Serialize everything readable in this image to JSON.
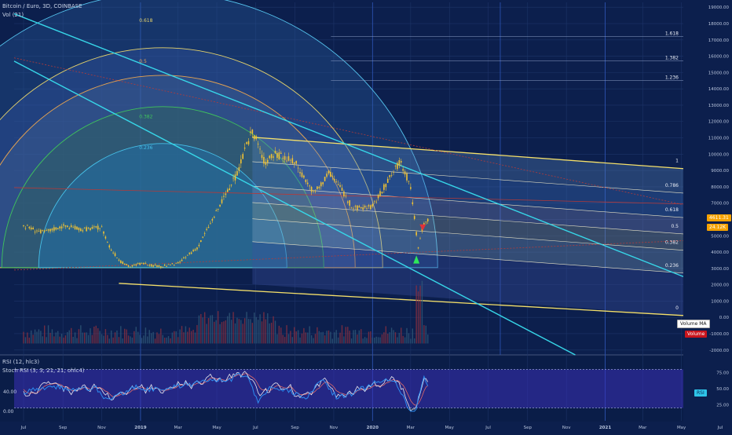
{
  "header": {
    "symbol_line": "Bitcoin / Euro, 3D, COINBASE",
    "volume_indicator": "Vol (21)"
  },
  "oscillators": {
    "rsi_label": "RSI (12, hlc3)",
    "stoch_label": "Stoch RSI (3, 3, 21, 21, ohlc4)",
    "rsi_tag": "RSI",
    "left_value_top": "40.00",
    "left_value_bottom": "0.00"
  },
  "volume_badges": {
    "ma_label": "Volume MA",
    "volume_label": "Volume"
  },
  "price_badges": {
    "last_price": "4611.31",
    "volume_value": "24.12K"
  },
  "colors": {
    "background": "#0c1f4d",
    "fib_fan_channel": "#f5e06a",
    "trend_line": "#37d6e8",
    "rsi_line": "#2d8cf0",
    "stoch_k": "#e8e8f0",
    "stoch_d": "#e06a6a",
    "candle_body": "#f1c232",
    "rsi_band_fill": "#3a2fb8"
  },
  "chart_data": {
    "type": "line",
    "series": [
      {
        "name": "Bitcoin / Euro",
        "x": [
          "2018-07-01",
          "2018-08-01",
          "2018-09-01",
          "2018-10-01",
          "2018-11-01",
          "2018-11-15",
          "2018-12-01",
          "2018-12-15",
          "2019-01-01",
          "2019-02-01",
          "2019-03-01",
          "2019-04-01",
          "2019-05-01",
          "2019-06-01",
          "2019-06-26",
          "2019-07-15",
          "2019-08-01",
          "2019-09-01",
          "2019-10-01",
          "2019-10-26",
          "2019-11-15",
          "2019-12-01",
          "2020-01-01",
          "2020-02-01",
          "2020-02-14",
          "2020-03-01",
          "2020-03-13",
          "2020-03-20",
          "2020-03-28"
        ],
        "values": [
          5600,
          5200,
          5600,
          5400,
          5500,
          4200,
          3400,
          3100,
          3300,
          3100,
          3300,
          4300,
          6500,
          8700,
          11500,
          9500,
          10000,
          9500,
          7600,
          8900,
          7700,
          6700,
          6800,
          8800,
          9600,
          8000,
          4200,
          5600,
          6000
        ]
      }
    ],
    "y_axis": {
      "ticks": [
        19000,
        18000,
        17000,
        16000,
        15000,
        14000,
        13000,
        12000,
        11000,
        10000,
        9000,
        8000,
        7000,
        6000,
        5000,
        4000,
        3000,
        2000,
        1000,
        0,
        -1000,
        -2000
      ],
      "tick_labels": [
        "19000.00",
        "18000.00",
        "17000.00",
        "16000.00",
        "15000.00",
        "14000.00",
        "13000.00",
        "12000.00",
        "11000.00",
        "10000.00",
        "9000.00",
        "8000.00",
        "7000.00",
        "6000.00",
        "5000.00",
        "4000.00",
        "3000.00",
        "2000.00",
        "1000.00",
        "0.00",
        "-1000.00",
        "-2000.00"
      ],
      "ylim": [
        -2300,
        19300
      ]
    },
    "x_axis": {
      "tick_labels": [
        "Jul",
        "Sep",
        "Nov",
        "2019",
        "Mar",
        "May",
        "Jul",
        "Sep",
        "Nov",
        "2020",
        "Mar",
        "May",
        "Jul",
        "Sep",
        "Nov",
        "2021",
        "Mar",
        "May",
        "Jul"
      ],
      "tick_dates": [
        "2018-07-01",
        "2018-09-01",
        "2018-11-01",
        "2019-01-01",
        "2019-03-01",
        "2019-05-01",
        "2019-07-01",
        "2019-09-01",
        "2019-11-01",
        "2020-01-01",
        "2020-03-01",
        "2020-05-01",
        "2020-07-01",
        "2020-09-01",
        "2020-11-01",
        "2021-01-01",
        "2021-03-01",
        "2021-05-01",
        "2021-07-01"
      ]
    },
    "fib_channel_levels": [
      {
        "label": "1.618",
        "value": 17700
      },
      {
        "label": "1.382",
        "value": 16200
      },
      {
        "label": "1.236",
        "value": 15000
      },
      {
        "label": "1",
        "value": 12000
      },
      {
        "label": "0.786",
        "value": 10500
      },
      {
        "label": "0.618",
        "value": 9000
      },
      {
        "label": "0.5",
        "value": 8000
      },
      {
        "label": "0.382",
        "value": 7000
      },
      {
        "label": "0.236",
        "value": 5600
      },
      {
        "label": "0",
        "value": 3000
      }
    ],
    "fib_fan_labels": [
      "0.618",
      "0.5",
      "0.382",
      "0.236"
    ],
    "rsi_axis": {
      "ticks": [
        75,
        50,
        25
      ],
      "tick_labels": [
        "75.00",
        "50.00",
        "25.00"
      ],
      "ylim": [
        0,
        100
      ]
    },
    "grid": true
  }
}
